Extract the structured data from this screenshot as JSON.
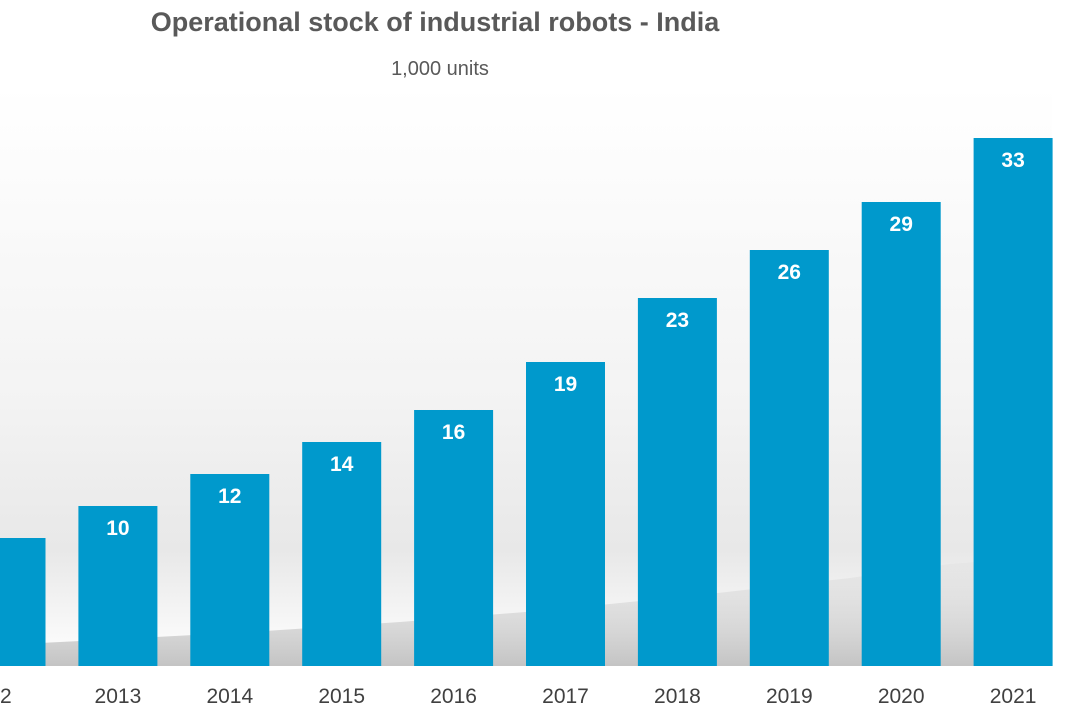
{
  "chart_data": {
    "type": "bar",
    "title": "Operational stock of industrial robots - India",
    "subtitle": "1,000 units",
    "xlabel": "",
    "ylabel": "",
    "categories": [
      "2",
      "2013",
      "2014",
      "2015",
      "2016",
      "2017",
      "2018",
      "2019",
      "2020",
      "2021"
    ],
    "values": [
      null,
      10,
      12,
      14,
      16,
      19,
      23,
      26,
      29,
      33
    ],
    "data_labels": [
      "",
      "10",
      "12",
      "14",
      "16",
      "19",
      "23",
      "26",
      "29",
      "33"
    ],
    "series_color": "#0099CC",
    "grid": false,
    "legend": "none"
  }
}
